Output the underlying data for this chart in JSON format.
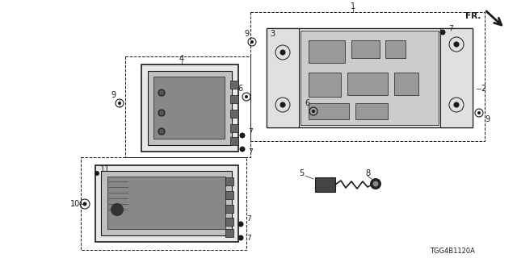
{
  "bg_color": "#ffffff",
  "line_color": "#1a1a1a",
  "diagram_code": "TGG4B1120A",
  "figsize": [
    6.4,
    3.2
  ],
  "dpi": 100
}
